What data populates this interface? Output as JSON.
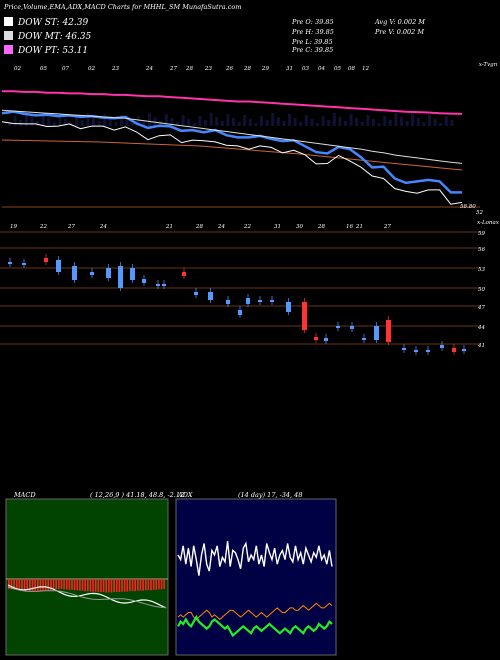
{
  "header": {
    "title": "Price,Volume,EMA,ADX,MACD Charts for MHHL_SM MunafaSutra.com"
  },
  "legend": [
    {
      "label": "DOW ST: 42.39",
      "color": "#ffffff"
    },
    {
      "label": "DOW MT: 46.35",
      "color": "#dddddd"
    },
    {
      "label": "DOW PT: 53.11",
      "color": "#ff66ff"
    }
  ],
  "stats": {
    "prev_open": "Pre   O: 39.85",
    "prev_high": "Pre   H: 39.85",
    "prev_low": "Pre   L: 39.85",
    "prev_close": "Pre   C: 39.85",
    "avg_volume": "Avg V: 0.002  M",
    "prev_volume": "Pre   V: 0.002  M"
  },
  "volume_strip": {
    "labels": [
      "02",
      "05",
      "07",
      "02",
      "23",
      "24",
      "27",
      "28",
      "23",
      "26",
      "28",
      "29",
      "31",
      "03",
      "04",
      "05",
      "08",
      "12"
    ],
    "right_label": "x-Tvgn"
  },
  "ema_panel": {
    "last_price_label": "58.80",
    "right_label": "52",
    "colors": {
      "price": "#ffffff",
      "ema_fast": "#4488ff",
      "ema_mid": "#dddddd",
      "ema_slow": "#ff33aa",
      "ema_long": "#cc6633"
    }
  },
  "candle_panel": {
    "date_labels": [
      "19",
      "22",
      "27",
      "24",
      "21",
      "28",
      "24",
      "22",
      "31",
      "30",
      "28",
      "16",
      "21",
      "27"
    ],
    "right_label": "x-Lonax",
    "price_ticks": [
      "59",
      "56",
      "53",
      "50",
      "47",
      "44",
      "41"
    ]
  },
  "macd": {
    "label": "MACD",
    "values": "( 12,26,9 ) 41.18, 48.8, -2.12"
  },
  "adx": {
    "label": "ADX",
    "values": "(14 day) 17, -34, 48"
  },
  "chart_data": [
    {
      "type": "line",
      "title": "Price,Volume,EMA,ADX,MACD Charts for MHHL_SM MunafaSutra.com",
      "series": [
        {
          "name": "DOW ST: 42.39",
          "values": [
            53.2,
            53.4,
            53.1,
            52.9,
            53.0,
            52.8,
            52.9,
            52.7,
            52.8,
            52.6,
            52.5,
            52.7,
            51.8,
            51.2,
            51.5,
            51.4,
            50.8,
            50.9,
            50.6,
            50.9,
            50.2,
            49.9,
            49.9,
            50.1,
            49.7,
            49.4,
            49.5,
            48.7,
            47.9,
            47.7,
            48.6,
            48.3,
            47.2,
            45.8,
            45.9,
            44.3,
            43.7,
            43.9,
            44.1,
            43.9,
            42.4,
            42.4
          ]
        },
        {
          "name": "DOW MT: 46.35",
          "values": [
            53.6,
            53.5,
            53.4,
            53.3,
            53.2,
            53.1,
            53.0,
            52.9,
            52.8,
            52.7,
            52.6,
            52.5,
            52.3,
            52.1,
            51.9,
            51.7,
            51.5,
            51.3,
            51.1,
            50.9,
            50.7,
            50.5,
            50.3,
            50.1,
            49.9,
            49.7,
            49.5,
            49.3,
            49.1,
            48.9,
            48.7,
            48.5,
            48.3,
            48.0,
            47.8,
            47.5,
            47.3,
            47.1,
            46.9,
            46.7,
            46.5,
            46.35
          ]
        },
        {
          "name": "DOW PT: 53.11",
          "values": [
            56.2,
            56.2,
            56.1,
            56.1,
            56.0,
            56.0,
            55.9,
            55.9,
            55.8,
            55.8,
            55.7,
            55.7,
            55.6,
            55.5,
            55.5,
            55.4,
            55.3,
            55.2,
            55.1,
            55.0,
            54.9,
            54.8,
            54.8,
            54.7,
            54.6,
            54.5,
            54.4,
            54.3,
            54.2,
            54.1,
            54.0,
            53.9,
            53.8,
            53.7,
            53.6,
            53.5,
            53.4,
            53.35,
            53.3,
            53.2,
            53.15,
            53.11
          ]
        }
      ]
    },
    {
      "type": "bar",
      "title": "MACD ( 12,26,9 ) 41.18, 48.8, -2.12",
      "values": [
        2.2,
        2.3,
        2.3,
        2.4,
        2.4,
        2.5,
        2.6,
        2.6,
        2.7,
        2.8,
        2.8,
        2.9,
        2.8,
        2.7,
        2.6,
        2.5,
        2.4,
        2.3,
        2.2,
        2.2,
        2.2,
        2.3,
        2.3,
        2.4,
        2.4,
        2.5,
        2.5,
        2.6,
        2.6,
        2.7,
        2.7,
        2.8,
        2.8,
        2.8,
        2.9,
        2.9,
        2.9,
        3.0,
        3.0,
        3.0,
        2.9,
        2.9,
        2.9,
        2.8,
        2.8,
        2.8,
        2.7,
        2.7,
        2.7,
        2.6,
        2.6,
        2.6,
        2.5,
        2.5,
        2.5,
        2.4,
        2.4,
        2.3,
        2.3,
        2.2
      ]
    },
    {
      "type": "line",
      "title": "ADX (14 day) 17, -34, 48",
      "series": [
        {
          "values": [
            40,
            38,
            44,
            36,
            43,
            35,
            44,
            38,
            31,
            40,
            45,
            36,
            33,
            42,
            40,
            44,
            35,
            39,
            37,
            46,
            35,
            42,
            41,
            38,
            34,
            43,
            45,
            37,
            40,
            38,
            44,
            36,
            40,
            35,
            45,
            41,
            38,
            43,
            36,
            40,
            42,
            38,
            45,
            39,
            37,
            44,
            38,
            41,
            36,
            43,
            40,
            37,
            41,
            39,
            44,
            38,
            40,
            36,
            42,
            35
          ]
        },
        {
          "values": [
            13,
            14,
            13,
            14,
            15,
            15,
            13,
            12,
            13,
            14,
            15,
            16,
            15,
            13,
            14,
            13,
            12,
            13,
            14,
            15,
            16,
            16,
            15,
            14,
            13,
            14,
            15,
            16,
            15,
            14,
            13,
            14,
            15,
            14,
            13,
            14,
            15,
            16,
            17,
            16,
            15,
            15,
            16,
            17,
            17,
            16,
            16,
            17,
            18,
            17,
            16,
            17,
            18,
            19,
            18,
            17,
            17,
            18,
            19,
            18
          ]
        },
        {
          "values": [
            9,
            11,
            10,
            12,
            10,
            9,
            11,
            13,
            11,
            10,
            9,
            8,
            9,
            11,
            12,
            11,
            10,
            9,
            8,
            9,
            7,
            5,
            6,
            7,
            8,
            9,
            8,
            7,
            6,
            8,
            9,
            8,
            7,
            8,
            9,
            10,
            9,
            8,
            7,
            6,
            7,
            8,
            7,
            6,
            8,
            9,
            8,
            7,
            6,
            8,
            9,
            8,
            7,
            8,
            10,
            9,
            8,
            9,
            11,
            10
          ]
        }
      ]
    }
  ]
}
